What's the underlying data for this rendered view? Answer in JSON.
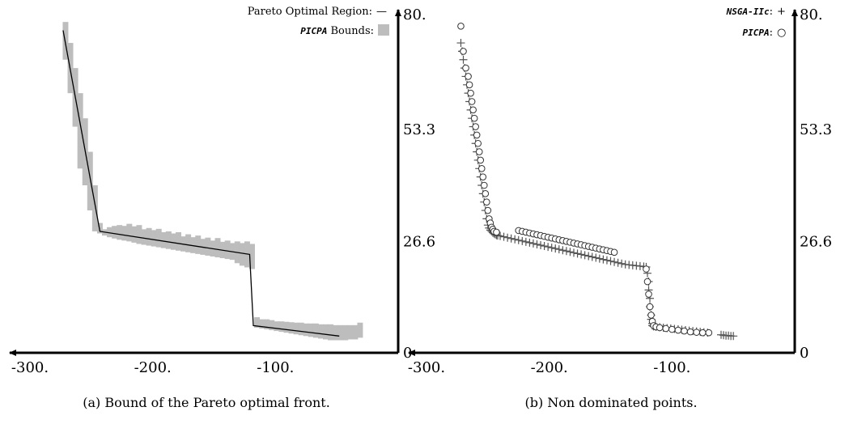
{
  "chart_data": [
    {
      "type": "area",
      "caption": "(a) Bound of the Pareto optimal front.",
      "xlim": [
        -300,
        0
      ],
      "ylim": [
        0,
        80
      ],
      "x_ticks": [
        -300,
        -200,
        -100
      ],
      "x_tick_labels": [
        "-300.",
        "-200.",
        "-100."
      ],
      "y_ticks": [
        80,
        53.3,
        26.6,
        0
      ],
      "y_tick_labels": [
        "80.",
        "53.3",
        "26.6",
        "0"
      ],
      "legend_placement": "top-right",
      "legend": [
        {
          "label": "Pareto Optimal Region:",
          "glyph": "—"
        },
        {
          "label_italic": "PICPA",
          "label": " Bounds:",
          "glyph": "rect",
          "color": "#bdbdbd"
        }
      ],
      "series": [
        {
          "kind": "line",
          "color": "#000000",
          "x": [
            -273,
            -243,
            -121,
            -118,
            -48
          ],
          "y": [
            77,
            29,
            23.5,
            6.5,
            4
          ]
        },
        {
          "kind": "bounds",
          "color": "#bdbdbd",
          "x": [
            -272,
            -268,
            -264,
            -260,
            -256,
            -252,
            -248,
            -244,
            -240,
            -236,
            -232,
            -228,
            -224,
            -220,
            -216,
            -212,
            -208,
            -204,
            -200,
            -196,
            -192,
            -188,
            -184,
            -180,
            -176,
            -172,
            -168,
            -164,
            -160,
            -156,
            -152,
            -148,
            -144,
            -140,
            -136,
            -132,
            -128,
            -124,
            -120,
            -116,
            -112,
            -108,
            -104,
            -100,
            -96,
            -92,
            -88,
            -84,
            -80,
            -76,
            -72,
            -68,
            -64,
            -60,
            -56,
            -52,
            -48,
            -44,
            -40,
            -36,
            -32
          ],
          "y_low": [
            70,
            62,
            54,
            44,
            40,
            34,
            29,
            28.5,
            28,
            27.6,
            27.3,
            27,
            26.8,
            26.6,
            26.3,
            26,
            25.8,
            25.6,
            25.4,
            25.2,
            25,
            24.8,
            24.6,
            24.4,
            24.2,
            24,
            23.8,
            23.6,
            23.4,
            23.2,
            23,
            22.8,
            22.6,
            22.4,
            22.2,
            21.4,
            20.8,
            20.4,
            20,
            6,
            5.8,
            5.6,
            5.4,
            5.2,
            5.0,
            4.8,
            4.6,
            4.4,
            4.2,
            4.0,
            3.8,
            3.6,
            3.4,
            3.2,
            3.0,
            3.0,
            3.0,
            3.0,
            3.2,
            3.2,
            3.6
          ],
          "y_high": [
            79,
            74,
            68,
            62,
            56,
            48,
            40,
            31,
            29.5,
            30,
            30.3,
            30.5,
            30.3,
            30.8,
            30.2,
            30.5,
            29.5,
            29.8,
            29.3,
            29.6,
            28.8,
            29,
            28.5,
            28.8,
            27.8,
            28.3,
            27.6,
            28,
            27.2,
            27.5,
            26.8,
            27.4,
            26.5,
            26.8,
            26.2,
            26.6,
            26.2,
            26.6,
            26,
            8.5,
            8,
            8,
            7.8,
            7.5,
            7.5,
            7.4,
            7.3,
            7.2,
            7.2,
            7.0,
            7.0,
            7.0,
            6.8,
            6.8,
            6.8,
            6.6,
            6.6,
            6.6,
            6.6,
            6.6,
            7.2
          ]
        }
      ]
    },
    {
      "type": "scatter",
      "caption": "(b) Non dominated points.",
      "xlim": [
        -300,
        0
      ],
      "ylim": [
        0,
        80
      ],
      "x_ticks": [
        -300,
        -200,
        -100
      ],
      "x_tick_labels": [
        "-300.",
        "-200.",
        "-100."
      ],
      "y_ticks": [
        80,
        53.3,
        26.6,
        0
      ],
      "y_tick_labels": [
        "80.",
        "53.3",
        "26.6",
        "0"
      ],
      "legend_placement": "top-right",
      "legend": [
        {
          "label_italic": "NSGA-IIc",
          "label": ":",
          "glyph": "+"
        },
        {
          "label_italic": "PICPA",
          "label": ":",
          "glyph": "○"
        }
      ],
      "series": [
        {
          "name": "NSGA-IIc",
          "marker": "+",
          "color": "#555555",
          "x": [
            -272,
            -271,
            -270,
            -269,
            -268,
            -267,
            -266,
            -265,
            -264,
            -263,
            -262,
            -261,
            -260,
            -259,
            -258,
            -257,
            -256,
            -255,
            -254,
            -253,
            -252,
            -251,
            -250,
            -249,
            -248,
            -247,
            -246,
            -245,
            -244,
            -243,
            -242,
            -240,
            -237,
            -234,
            -231,
            -228,
            -225,
            -222,
            -219,
            -216,
            -213,
            -210,
            -207,
            -204,
            -201,
            -198,
            -195,
            -192,
            -189,
            -186,
            -183,
            -180,
            -177,
            -174,
            -171,
            -168,
            -165,
            -162,
            -159,
            -156,
            -153,
            -150,
            -147,
            -144,
            -141,
            -138,
            -135,
            -132,
            -129,
            -126,
            -123,
            -121,
            -120,
            -119,
            -119,
            -118,
            -118,
            -117,
            -117,
            -116,
            -116,
            -115,
            -113,
            -110,
            -107,
            -104,
            -101,
            -98,
            -95,
            -92,
            -89,
            -86,
            -83,
            -80,
            -77,
            -74,
            -71,
            -60,
            -58,
            -56,
            -54,
            -52,
            -50
          ],
          "y": [
            74,
            72,
            70,
            68,
            66,
            64,
            62,
            60,
            58,
            56,
            54,
            52,
            50,
            48,
            46,
            44,
            42,
            40,
            38,
            36,
            34,
            32,
            30.5,
            29.8,
            29.3,
            29,
            28.7,
            28.5,
            28.3,
            28.1,
            28,
            27.9,
            27.7,
            27.5,
            27.3,
            27.1,
            26.9,
            26.7,
            26.5,
            26.3,
            26.1,
            25.9,
            25.7,
            25.5,
            25.3,
            25.1,
            24.9,
            24.7,
            24.5,
            24.3,
            24.1,
            23.9,
            23.7,
            23.5,
            23.3,
            23.1,
            22.9,
            22.7,
            22.5,
            22.3,
            22.1,
            21.9,
            21.7,
            21.5,
            21.3,
            21.1,
            21,
            20.9,
            20.8,
            20.7,
            20.6,
            20.5,
            19,
            17,
            15,
            13,
            11,
            9,
            8,
            7,
            6.5,
            6.3,
            6.2,
            6.1,
            6,
            5.9,
            5.8,
            5.7,
            5.6,
            5.5,
            5.4,
            5.3,
            5.2,
            5.1,
            5.0,
            4.9,
            4.8,
            4.3,
            4.2,
            4.1,
            4.1,
            4.0,
            4.0
          ]
        },
        {
          "name": "PICPA",
          "marker": "○",
          "color": "#333333",
          "x": [
            -272,
            -270,
            -268,
            -266,
            -265,
            -264,
            -263,
            -262,
            -261,
            -260,
            -259,
            -258,
            -257,
            -256,
            -255,
            -254,
            -253,
            -252,
            -251,
            -250,
            -249,
            -248,
            -247,
            -246,
            -245,
            -243,
            -225,
            -222,
            -219,
            -216,
            -213,
            -210,
            -207,
            -204,
            -201,
            -198,
            -195,
            -192,
            -189,
            -186,
            -183,
            -180,
            -177,
            -174,
            -171,
            -168,
            -165,
            -162,
            -159,
            -156,
            -153,
            -150,
            -147,
            -121,
            -120,
            -119,
            -118,
            -117,
            -116,
            -115,
            -113,
            -110,
            -105,
            -100,
            -95,
            -90,
            -85,
            -80,
            -75,
            -70
          ],
          "y": [
            78,
            72,
            68,
            66,
            64,
            62,
            60,
            58,
            56,
            54,
            52,
            50,
            48,
            46,
            44,
            42,
            40,
            38,
            36,
            34,
            32,
            31,
            30,
            29.5,
            29,
            28.8,
            29.2,
            29.0,
            28.8,
            28.6,
            28.4,
            28.2,
            28.0,
            27.8,
            27.6,
            27.4,
            27.2,
            27.0,
            26.8,
            26.6,
            26.4,
            26.2,
            26.0,
            25.8,
            25.6,
            25.4,
            25.2,
            25.0,
            24.8,
            24.6,
            24.4,
            24.2,
            24.0,
            20.0,
            17.0,
            14.0,
            11.0,
            9.0,
            7.5,
            6.5,
            6.2,
            6.0,
            5.8,
            5.6,
            5.4,
            5.2,
            5.0,
            4.9,
            4.8,
            4.8
          ]
        }
      ]
    }
  ]
}
